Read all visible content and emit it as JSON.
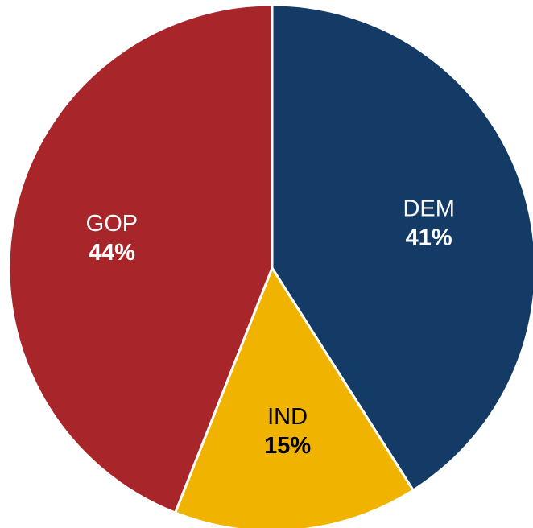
{
  "chart_data": {
    "type": "pie",
    "title": "",
    "slices": [
      {
        "label": "DEM",
        "value": 41,
        "value_label": "41%",
        "color": "#143a66",
        "text_color": "#ffffff"
      },
      {
        "label": "IND",
        "value": 15,
        "value_label": "15%",
        "color": "#f0b400",
        "text_color": "#000000"
      },
      {
        "label": "GOP",
        "value": 44,
        "value_label": "44%",
        "color": "#a8252a",
        "text_color": "#ffffff"
      }
    ],
    "start_angle": "top (12 o'clock), clockwise"
  }
}
